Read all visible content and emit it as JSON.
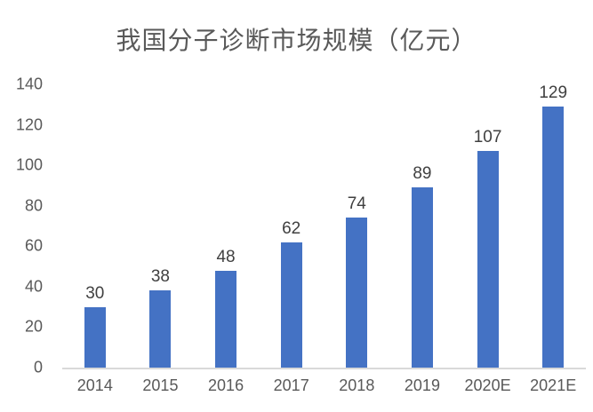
{
  "chart_data": {
    "type": "bar",
    "title": "我国分子诊断市场规模（亿元）",
    "categories": [
      "2014",
      "2015",
      "2016",
      "2017",
      "2018",
      "2019",
      "2020E",
      "2021E"
    ],
    "values": [
      30,
      38,
      48,
      62,
      74,
      89,
      107,
      129
    ],
    "xlabel": "",
    "ylabel": "",
    "ylim": [
      0,
      140
    ],
    "yticks": [
      0,
      20,
      40,
      60,
      80,
      100,
      120,
      140
    ],
    "grid": false,
    "legend_position": "none",
    "colors": {
      "bar": "#4472C4",
      "title": "#595959",
      "axis_labels": "#595959",
      "data_labels": "#404040",
      "baseline": "#D9D9D9"
    }
  }
}
